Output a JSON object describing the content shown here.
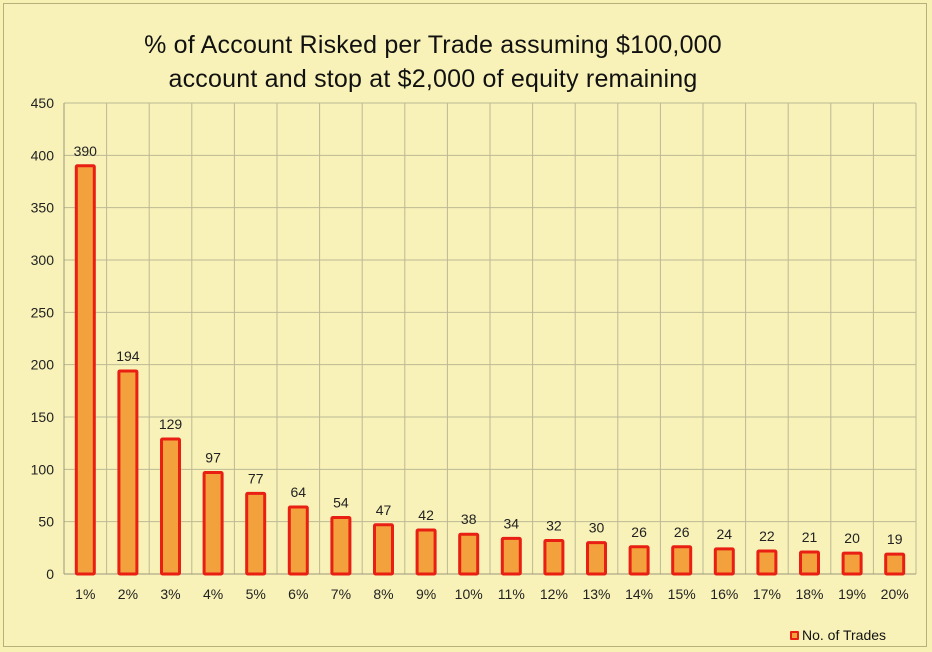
{
  "chart_data": {
    "type": "bar",
    "title_line1": "% of Account Risked per Trade assuming $100,000",
    "title_line2": "account and stop at $2,000 of equity remaining",
    "xlabel": "",
    "ylabel": "",
    "categories": [
      "1%",
      "2%",
      "3%",
      "4%",
      "5%",
      "6%",
      "7%",
      "8%",
      "9%",
      "10%",
      "11%",
      "12%",
      "13%",
      "14%",
      "15%",
      "16%",
      "17%",
      "18%",
      "19%",
      "20%"
    ],
    "series": [
      {
        "name": "No. of Trades",
        "values": [
          390,
          194,
          129,
          97,
          77,
          64,
          54,
          47,
          42,
          38,
          34,
          32,
          30,
          26,
          26,
          24,
          22,
          21,
          20,
          19
        ]
      }
    ],
    "ylim": [
      0,
      450
    ],
    "yticks": [
      0,
      50,
      100,
      150,
      200,
      250,
      300,
      350,
      400,
      450
    ],
    "grid": true,
    "data_labels": true,
    "legend_position": "bottom-right",
    "colors": {
      "bar_fill": "#f3a13c",
      "bar_edge": "#e81f12",
      "grid": "#bdb894",
      "plot_bg": "#f8f2b8"
    }
  }
}
